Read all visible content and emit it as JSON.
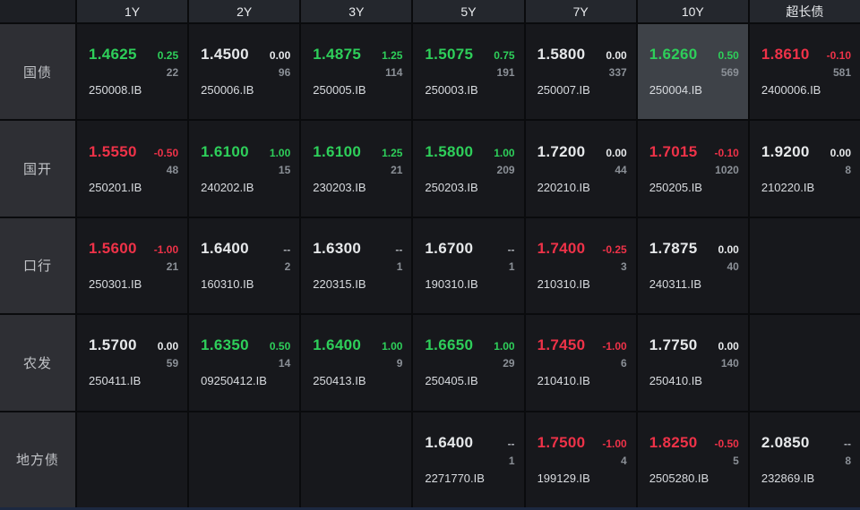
{
  "header": {
    "columns": [
      "1Y",
      "2Y",
      "3Y",
      "5Y",
      "7Y",
      "10Y",
      "超长债"
    ]
  },
  "colors": {
    "up_green": "#2ecf5a",
    "down_red": "#ee3248",
    "flat_white": "#e6e8ea",
    "highlight_cell_bg": "#3e4248"
  },
  "rows": [
    {
      "label": "国债",
      "cells": [
        {
          "value": "1.4625",
          "vc": "green",
          "change": "0.25",
          "cc": "green",
          "count": "22",
          "code": "250008.IB"
        },
        {
          "value": "1.4500",
          "vc": "white",
          "change": "0.00",
          "cc": "white",
          "count": "96",
          "code": "250006.IB"
        },
        {
          "value": "1.4875",
          "vc": "green",
          "change": "1.25",
          "cc": "green",
          "count": "114",
          "code": "250005.IB"
        },
        {
          "value": "1.5075",
          "vc": "green",
          "change": "0.75",
          "cc": "green",
          "count": "191",
          "code": "250003.IB"
        },
        {
          "value": "1.5800",
          "vc": "white",
          "change": "0.00",
          "cc": "white",
          "count": "337",
          "code": "250007.IB"
        },
        {
          "value": "1.6260",
          "vc": "green",
          "change": "0.50",
          "cc": "green",
          "count": "569",
          "code": "250004.IB",
          "highlight": true
        },
        {
          "value": "1.8610",
          "vc": "red",
          "change": "-0.10",
          "cc": "red",
          "count": "581",
          "code": "2400006.IB"
        }
      ]
    },
    {
      "label": "国开",
      "cells": [
        {
          "value": "1.5550",
          "vc": "red",
          "change": "-0.50",
          "cc": "red",
          "count": "48",
          "code": "250201.IB"
        },
        {
          "value": "1.6100",
          "vc": "green",
          "change": "1.00",
          "cc": "green",
          "count": "15",
          "code": "240202.IB"
        },
        {
          "value": "1.6100",
          "vc": "green",
          "change": "1.25",
          "cc": "green",
          "count": "21",
          "code": "230203.IB"
        },
        {
          "value": "1.5800",
          "vc": "green",
          "change": "1.00",
          "cc": "green",
          "count": "209",
          "code": "250203.IB"
        },
        {
          "value": "1.7200",
          "vc": "white",
          "change": "0.00",
          "cc": "white",
          "count": "44",
          "code": "220210.IB"
        },
        {
          "value": "1.7015",
          "vc": "red",
          "change": "-0.10",
          "cc": "red",
          "count": "1020",
          "code": "250205.IB"
        },
        {
          "value": "1.9200",
          "vc": "white",
          "change": "0.00",
          "cc": "white",
          "count": "8",
          "code": "210220.IB"
        }
      ]
    },
    {
      "label": "口行",
      "cells": [
        {
          "value": "1.5600",
          "vc": "red",
          "change": "-1.00",
          "cc": "red",
          "count": "21",
          "code": "250301.IB"
        },
        {
          "value": "1.6400",
          "vc": "white",
          "change": "--",
          "cc": "gray",
          "count": "2",
          "code": "160310.IB"
        },
        {
          "value": "1.6300",
          "vc": "white",
          "change": "--",
          "cc": "gray",
          "count": "1",
          "code": "220315.IB"
        },
        {
          "value": "1.6700",
          "vc": "white",
          "change": "--",
          "cc": "gray",
          "count": "1",
          "code": "190310.IB"
        },
        {
          "value": "1.7400",
          "vc": "red",
          "change": "-0.25",
          "cc": "red",
          "count": "3",
          "code": "210310.IB"
        },
        {
          "value": "1.7875",
          "vc": "white",
          "change": "0.00",
          "cc": "white",
          "count": "40",
          "code": "240311.IB"
        },
        null
      ]
    },
    {
      "label": "农发",
      "cells": [
        {
          "value": "1.5700",
          "vc": "white",
          "change": "0.00",
          "cc": "white",
          "count": "59",
          "code": "250411.IB"
        },
        {
          "value": "1.6350",
          "vc": "green",
          "change": "0.50",
          "cc": "green",
          "count": "14",
          "code": "09250412.IB"
        },
        {
          "value": "1.6400",
          "vc": "green",
          "change": "1.00",
          "cc": "green",
          "count": "9",
          "code": "250413.IB"
        },
        {
          "value": "1.6650",
          "vc": "green",
          "change": "1.00",
          "cc": "green",
          "count": "29",
          "code": "250405.IB"
        },
        {
          "value": "1.7450",
          "vc": "red",
          "change": "-1.00",
          "cc": "red",
          "count": "6",
          "code": "210410.IB"
        },
        {
          "value": "1.7750",
          "vc": "white",
          "change": "0.00",
          "cc": "white",
          "count": "140",
          "code": "250410.IB"
        },
        null
      ]
    },
    {
      "label": "地方债",
      "cells": [
        null,
        null,
        null,
        {
          "value": "1.6400",
          "vc": "white",
          "change": "--",
          "cc": "gray",
          "count": "1",
          "code": "2271770.IB"
        },
        {
          "value": "1.7500",
          "vc": "red",
          "change": "-1.00",
          "cc": "red",
          "count": "4",
          "code": "199129.IB"
        },
        {
          "value": "1.8250",
          "vc": "red",
          "change": "-0.50",
          "cc": "red",
          "count": "5",
          "code": "2505280.IB"
        },
        {
          "value": "2.0850",
          "vc": "white",
          "change": "--",
          "cc": "gray",
          "count": "8",
          "code": "232869.IB"
        }
      ]
    }
  ]
}
